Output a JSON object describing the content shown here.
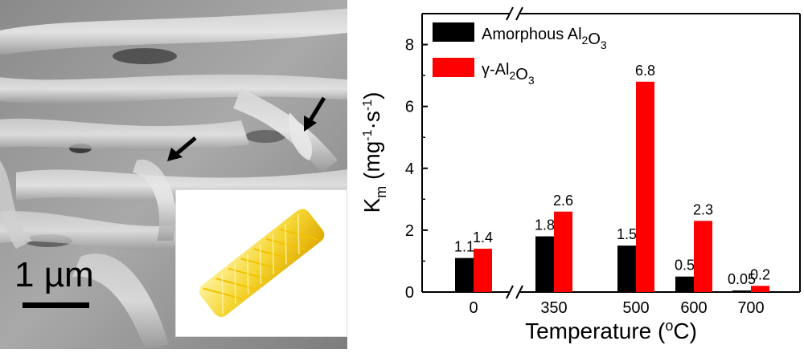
{
  "micrograph": {
    "scale_label": "1 µm",
    "colors": {
      "inset_tube": "#f5d532"
    }
  },
  "chart_data": {
    "type": "bar",
    "categories": [
      "0",
      "350",
      "500",
      "600",
      "700"
    ],
    "series": [
      {
        "name": "Amorphous Al2O3",
        "values": [
          1.1,
          1.8,
          1.5,
          0.5,
          0.05
        ],
        "labels": [
          "1.1",
          "1.8",
          "1.5",
          "0.5",
          "0.05"
        ],
        "color": "#000000"
      },
      {
        "name": "γ-Al2O3",
        "values": [
          1.4,
          2.6,
          6.8,
          2.3,
          0.2
        ],
        "labels": [
          "1.4",
          "2.6",
          "6.8",
          "2.3",
          "0.2"
        ],
        "color": "#ff0000"
      }
    ],
    "xlabel": "Temperature (oC)",
    "ylabel": "Km (mg-1·s-1)",
    "ylim": [
      0,
      9
    ],
    "yticks": [
      "0",
      "2",
      "4",
      "6",
      "8"
    ],
    "axis_breaks": [
      "top between 0 and 350",
      "bottom between 0 and 350"
    ],
    "legend": "top-left",
    "grid": false
  }
}
